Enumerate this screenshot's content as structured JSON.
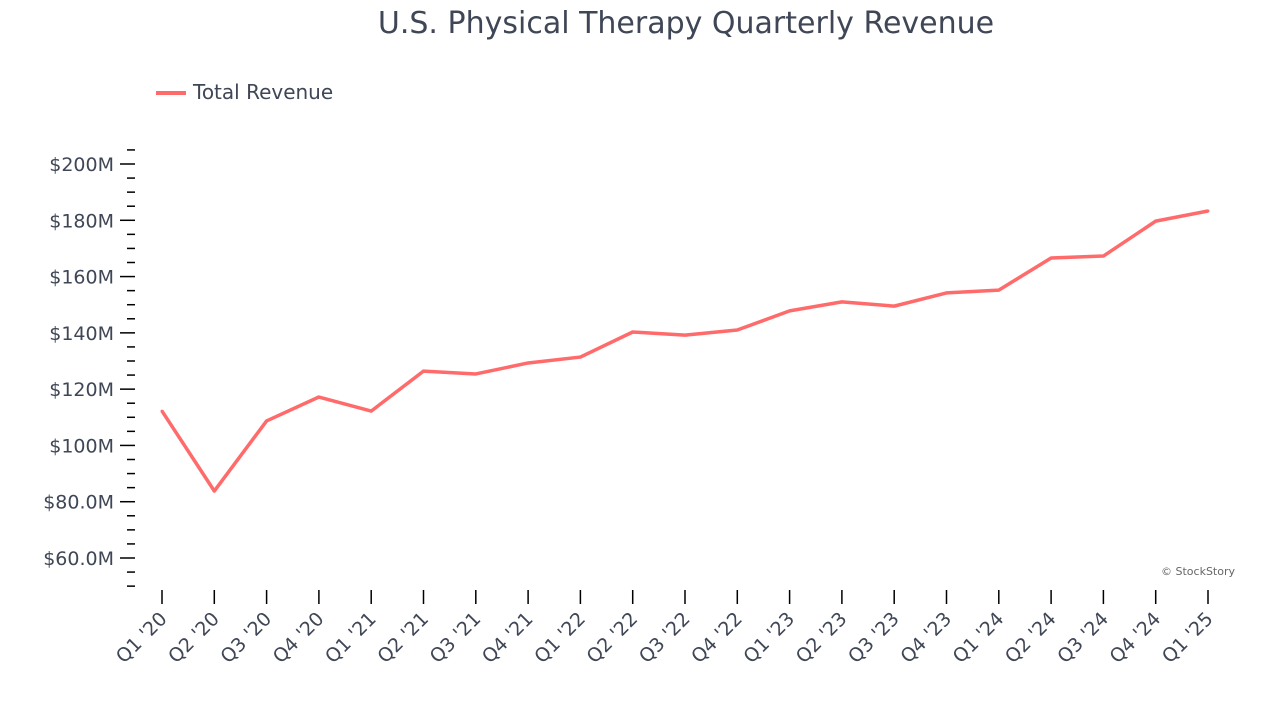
{
  "chart_data": {
    "type": "line",
    "title": "U.S. Physical Therapy Quarterly Revenue",
    "xlabel": "",
    "ylabel": "",
    "categories": [
      "Q1 '20",
      "Q2 '20",
      "Q3 '20",
      "Q4 '20",
      "Q1 '21",
      "Q2 '21",
      "Q3 '21",
      "Q4 '21",
      "Q1 '22",
      "Q2 '22",
      "Q3 '22",
      "Q4 '22",
      "Q1 '23",
      "Q2 '23",
      "Q3 '23",
      "Q4 '23",
      "Q1 '24",
      "Q2 '24",
      "Q3 '24",
      "Q4 '24",
      "Q1 '25"
    ],
    "series": [
      {
        "name": "Total Revenue",
        "color": "#ff6b6b",
        "values": [
          112.2,
          83.8,
          108.7,
          117.2,
          112.2,
          126.4,
          125.4,
          129.3,
          131.4,
          140.3,
          139.2,
          141.0,
          147.8,
          151.0,
          149.5,
          154.2,
          155.2,
          166.6,
          167.3,
          179.7,
          183.3
        ]
      }
    ],
    "y_ticks": [
      60,
      80,
      100,
      120,
      140,
      160,
      180,
      200
    ],
    "y_tick_labels": [
      "$60.0M",
      "$80.0M",
      "$100M",
      "$120M",
      "$140M",
      "$160M",
      "$180M",
      "$200M"
    ],
    "ylim": [
      48.5,
      209.2
    ],
    "y_unit": "millions USD",
    "grid": false,
    "legend": "top-left"
  },
  "watermark": "© StockStory",
  "colors": {
    "text": "#3f4656",
    "line": "#ff6b6b"
  }
}
